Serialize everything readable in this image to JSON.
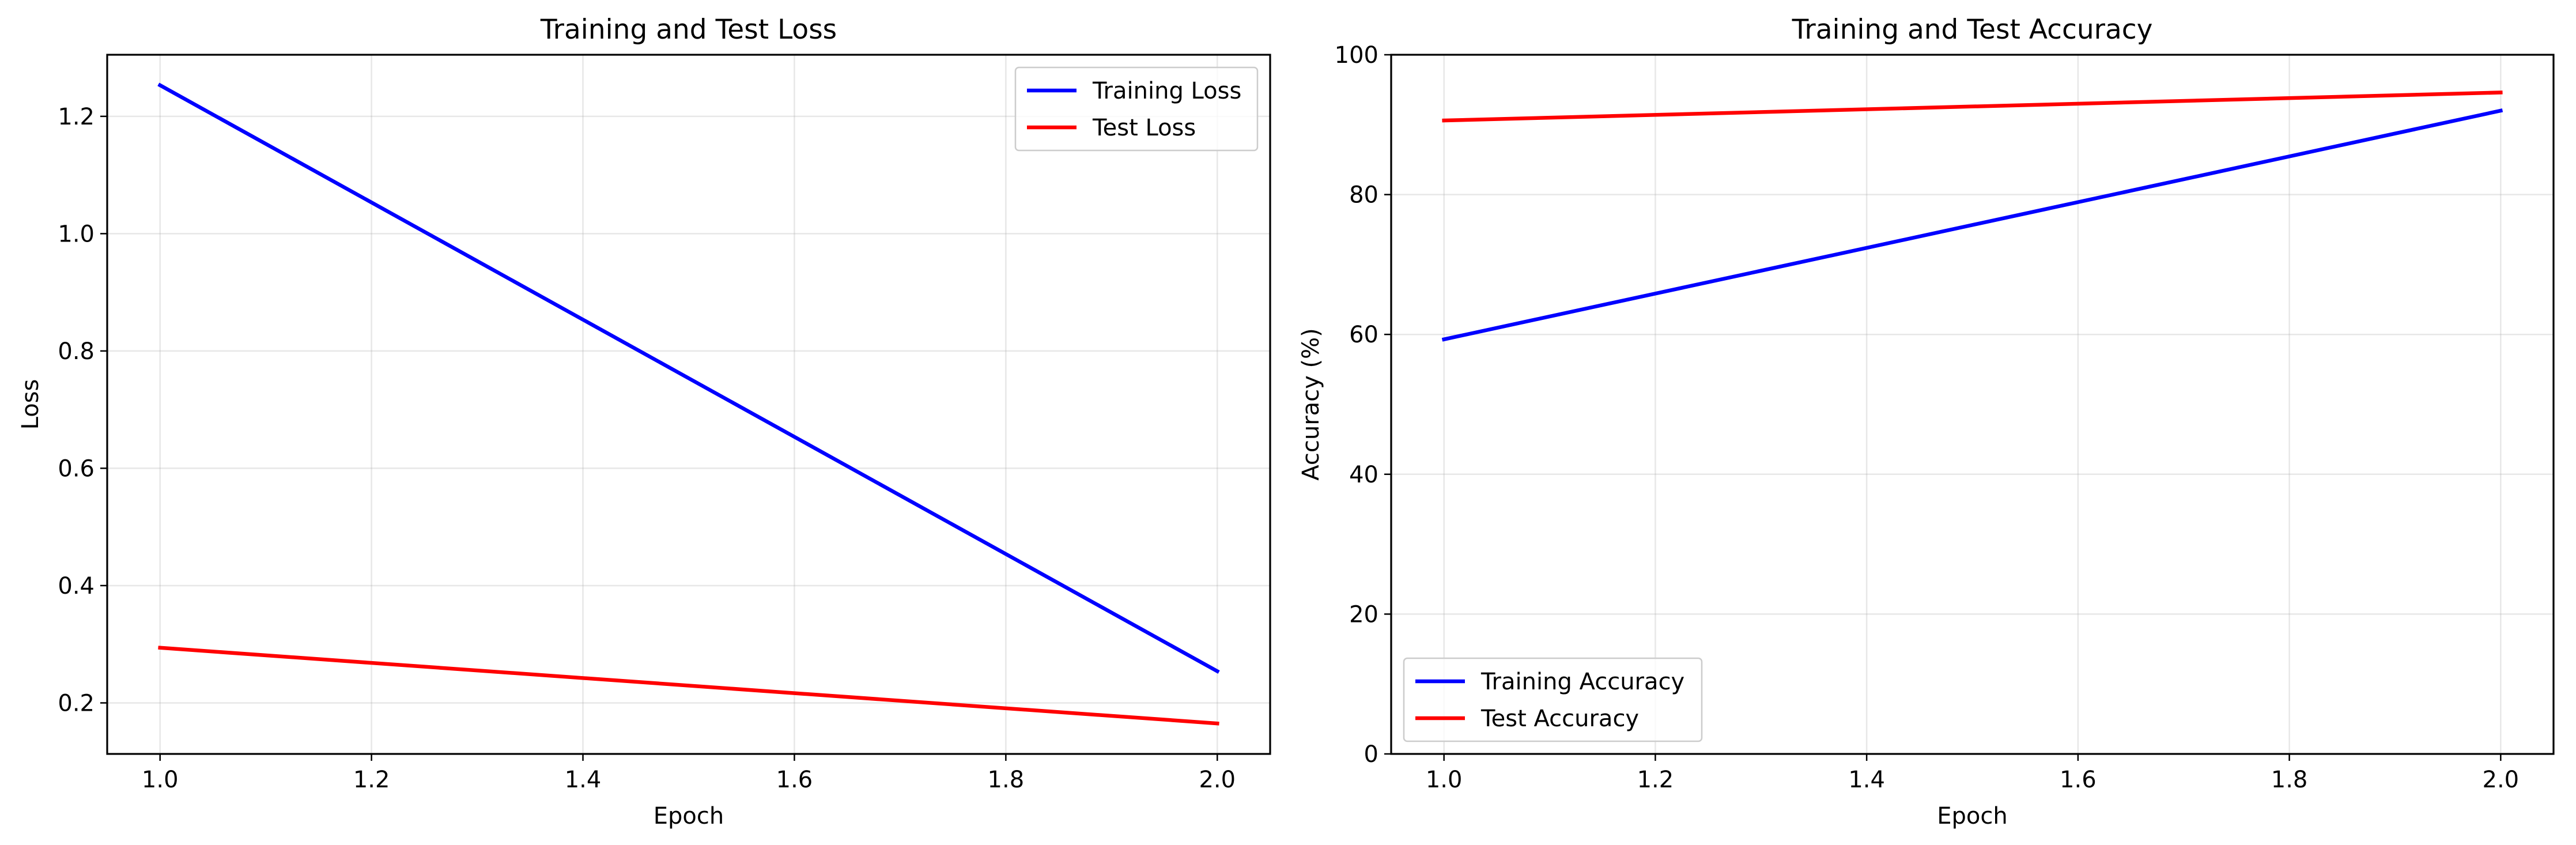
{
  "chart_data": [
    {
      "type": "line",
      "title": "Training and Test Loss",
      "xlabel": "Epoch",
      "ylabel": "Loss",
      "xlim": [
        0.95,
        2.05
      ],
      "ylim": [
        0.113,
        1.305
      ],
      "xticks": [
        1.0,
        1.2,
        1.4,
        1.6,
        1.8,
        2.0
      ],
      "xtick_labels": [
        "1.0",
        "1.2",
        "1.4",
        "1.6",
        "1.8",
        "2.0"
      ],
      "yticks": [
        0.2,
        0.4,
        0.6,
        0.8,
        1.0,
        1.2
      ],
      "ytick_labels": [
        "0.2",
        "0.4",
        "0.6",
        "0.8",
        "1.0",
        "1.2"
      ],
      "grid": true,
      "legend_position": "top-right",
      "x": [
        1.0,
        2.0
      ],
      "series": [
        {
          "name": "Training Loss",
          "color": "#0000ff",
          "values": [
            1.253,
            0.254
          ]
        },
        {
          "name": "Test Loss",
          "color": "#ff0000",
          "values": [
            0.294,
            0.165
          ]
        }
      ]
    },
    {
      "type": "line",
      "title": "Training and Test Accuracy",
      "xlabel": "Epoch",
      "ylabel": "Accuracy (%)",
      "xlim": [
        0.95,
        2.05
      ],
      "ylim": [
        0,
        100
      ],
      "xticks": [
        1.0,
        1.2,
        1.4,
        1.6,
        1.8,
        2.0
      ],
      "xtick_labels": [
        "1.0",
        "1.2",
        "1.4",
        "1.6",
        "1.8",
        "2.0"
      ],
      "yticks": [
        0,
        20,
        40,
        60,
        80,
        100
      ],
      "ytick_labels": [
        "0",
        "20",
        "40",
        "60",
        "80",
        "100"
      ],
      "grid": true,
      "legend_position": "bottom-left",
      "x": [
        1.0,
        2.0
      ],
      "series": [
        {
          "name": "Training Accuracy",
          "color": "#0000ff",
          "values": [
            59.3,
            92.0
          ]
        },
        {
          "name": "Test Accuracy",
          "color": "#ff0000",
          "values": [
            90.6,
            94.6
          ]
        }
      ]
    }
  ]
}
